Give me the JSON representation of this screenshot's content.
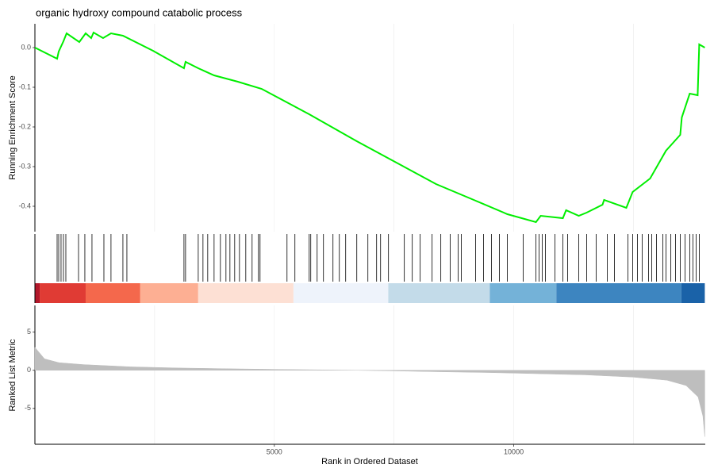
{
  "chart_data": [
    {
      "type": "line",
      "title": "organic hydroxy compound catabolic process",
      "y_label": "Running Enrichment Score",
      "x": [
        0,
        464,
        497,
        596,
        662,
        927,
        1060,
        1175,
        1225,
        1424,
        1589,
        1838,
        2467,
        3113,
        3146,
        3411,
        3742,
        4238,
        4735,
        5728,
        6722,
        7550,
        8377,
        9205,
        9868,
        10464,
        10563,
        11026,
        11093,
        11358,
        11523,
        11854,
        11887,
        12351,
        12483,
        12848,
        13179,
        13477,
        13510,
        13675,
        13841,
        13874,
        13990
      ],
      "values": [
        0,
        -0.028,
        -0.01,
        0.016,
        0.036,
        0.014,
        0.036,
        0.024,
        0.038,
        0.024,
        0.036,
        0.03,
        -0.008,
        -0.052,
        -0.036,
        -0.052,
        -0.07,
        -0.086,
        -0.104,
        -0.168,
        -0.236,
        -0.29,
        -0.344,
        -0.386,
        -0.42,
        -0.44,
        -0.424,
        -0.43,
        -0.41,
        -0.424,
        -0.416,
        -0.396,
        -0.384,
        -0.404,
        -0.364,
        -0.33,
        -0.26,
        -0.22,
        -0.176,
        -0.116,
        -0.12,
        0.008,
        0
      ],
      "color": "#00ee00",
      "xlim": [
        0,
        14000
      ],
      "ylim": [
        -0.464,
        0.06
      ],
      "yticks": [
        {
          "value": 0,
          "label": "0.0"
        },
        -0.1,
        -0.2,
        -0.3,
        -0.4
      ],
      "xgrid": [
        2500,
        5000,
        7500,
        10000,
        12500
      ]
    },
    {
      "type": "rug",
      "xlim": [
        0,
        14000
      ],
      "color": "#000000",
      "x": [
        464,
        497,
        546,
        596,
        646,
        911,
        1043,
        1192,
        1441,
        1589,
        1838,
        1921,
        3113,
        3146,
        3411,
        3510,
        3609,
        3742,
        3874,
        3990,
        4073,
        4172,
        4272,
        4404,
        4536,
        4669,
        4702,
        5265,
        5430,
        5728,
        5761,
        5894,
        6026,
        6225,
        6358,
        6490,
        6722,
        6954,
        7136,
        7219,
        7384,
        7715,
        7881,
        8046,
        8295,
        8477,
        8675,
        8841,
        8907,
        9205,
        9371,
        9536,
        9702,
        9868,
        10199,
        10464,
        10530,
        10596,
        10662,
        10861,
        11026,
        11126,
        11358,
        11523,
        11722,
        11953,
        12102,
        12384,
        12483,
        12583,
        12682,
        12814,
        12881,
        12980,
        13112,
        13179,
        13278,
        13377,
        13477,
        13576,
        13675,
        13741,
        13808,
        13874
      ],
      "band_edges": [
        0,
        100,
        1060,
        2200,
        3410,
        5400,
        7380,
        9500,
        10890,
        13500,
        13990
      ],
      "band_colors": [
        "#b2182b",
        "#e03b34",
        "#f4684c",
        "#fdaf93",
        "#fde0d4",
        "#eef3fb",
        "#c3dbe9",
        "#74b2d8",
        "#3d85c0",
        "#1a62a8"
      ]
    },
    {
      "type": "area",
      "x_label": "Rank in Ordered Dataset",
      "y_label": "Ranked List Metric",
      "x": [
        0,
        200,
        500,
        1000,
        2000,
        3000,
        4000,
        5000,
        6000,
        6700,
        7500,
        8500,
        9500,
        10500,
        11500,
        12500,
        13200,
        13600,
        13850,
        13950,
        13990
      ],
      "values": [
        3,
        1.5,
        1.0,
        0.75,
        0.45,
        0.3,
        0.2,
        0.12,
        0.05,
        0,
        -0.08,
        -0.2,
        -0.3,
        -0.45,
        -0.6,
        -0.9,
        -1.3,
        -2,
        -3.5,
        -6,
        -8.7
      ],
      "color": "#bebebe",
      "xlim": [
        0,
        14000
      ],
      "ylim": [
        -9.7,
        8.5
      ],
      "yticks": [
        5,
        0,
        -5
      ],
      "xticks": [
        5000,
        10000
      ],
      "xgrid": [
        2500,
        5000,
        7500,
        10000,
        12500
      ]
    }
  ]
}
